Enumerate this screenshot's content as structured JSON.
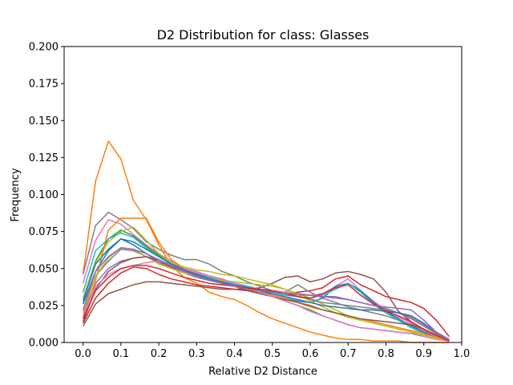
{
  "chart_data": {
    "type": "line",
    "title": "D2 Distribution for class: Glasses",
    "xlabel": "Relative D2 Distance",
    "ylabel": "Frequency",
    "xlim": [
      -0.05,
      1.0
    ],
    "ylim": [
      0.0,
      0.2
    ],
    "xticks": [
      0.0,
      0.1,
      0.2,
      0.3,
      0.4,
      0.5,
      0.6,
      0.7,
      0.8,
      0.9,
      1.0
    ],
    "xtick_labels": [
      "0.0",
      "0.1",
      "0.2",
      "0.3",
      "0.4",
      "0.5",
      "0.6",
      "0.7",
      "0.8",
      "0.9",
      "1.0"
    ],
    "yticks": [
      0.0,
      0.025,
      0.05,
      0.075,
      0.1,
      0.125,
      0.15,
      0.175,
      0.2
    ],
    "ytick_labels": [
      "0.000",
      "0.025",
      "0.050",
      "0.075",
      "0.100",
      "0.125",
      "0.150",
      "0.175",
      "0.200"
    ],
    "grid": false,
    "legend": "none",
    "x": [
      0.0,
      0.033,
      0.067,
      0.1,
      0.133,
      0.167,
      0.2,
      0.233,
      0.267,
      0.3,
      0.333,
      0.367,
      0.4,
      0.433,
      0.467,
      0.5,
      0.533,
      0.567,
      0.6,
      0.633,
      0.667,
      0.7,
      0.733,
      0.767,
      0.8,
      0.833,
      0.867,
      0.9,
      0.933,
      0.967
    ],
    "series": [
      {
        "color": "#ff7f0e",
        "values": [
          0.046,
          0.109,
          0.136,
          0.124,
          0.096,
          0.083,
          0.066,
          0.052,
          0.044,
          0.04,
          0.034,
          0.031,
          0.029,
          0.025,
          0.02,
          0.016,
          0.013,
          0.01,
          0.007,
          0.005,
          0.003,
          0.002,
          0.002,
          0.001,
          0.001,
          0.001,
          0.0,
          0.0,
          0.0,
          0.0
        ]
      },
      {
        "color": "#8c564b",
        "values": [
          0.011,
          0.026,
          0.033,
          0.036,
          0.039,
          0.041,
          0.041,
          0.04,
          0.039,
          0.038,
          0.037,
          0.036,
          0.036,
          0.036,
          0.037,
          0.04,
          0.044,
          0.045,
          0.041,
          0.043,
          0.047,
          0.048,
          0.046,
          0.043,
          0.034,
          0.021,
          0.014,
          0.008,
          0.004,
          0.001
        ]
      },
      {
        "color": "#d62728",
        "values": [
          0.013,
          0.03,
          0.04,
          0.047,
          0.051,
          0.05,
          0.046,
          0.043,
          0.041,
          0.039,
          0.038,
          0.037,
          0.036,
          0.035,
          0.034,
          0.034,
          0.033,
          0.034,
          0.035,
          0.037,
          0.043,
          0.045,
          0.039,
          0.035,
          0.031,
          0.029,
          0.027,
          0.023,
          0.015,
          0.004
        ]
      },
      {
        "color": "#7f7f7f",
        "values": [
          0.046,
          0.079,
          0.088,
          0.083,
          0.077,
          0.068,
          0.063,
          0.059,
          0.056,
          0.056,
          0.053,
          0.048,
          0.045,
          0.041,
          0.038,
          0.035,
          0.034,
          0.039,
          0.034,
          0.03,
          0.027,
          0.024,
          0.022,
          0.02,
          0.018,
          0.015,
          0.012,
          0.007,
          0.004,
          0.001
        ]
      },
      {
        "color": "#e377c2",
        "values": [
          0.04,
          0.069,
          0.083,
          0.08,
          0.073,
          0.066,
          0.06,
          0.055,
          0.05,
          0.048,
          0.045,
          0.043,
          0.04,
          0.038,
          0.036,
          0.035,
          0.034,
          0.033,
          0.032,
          0.033,
          0.038,
          0.043,
          0.035,
          0.028,
          0.022,
          0.017,
          0.013,
          0.008,
          0.004,
          0.001
        ]
      },
      {
        "color": "#2ca02c",
        "values": [
          0.03,
          0.055,
          0.07,
          0.076,
          0.072,
          0.065,
          0.059,
          0.054,
          0.05,
          0.047,
          0.044,
          0.041,
          0.038,
          0.036,
          0.033,
          0.031,
          0.028,
          0.025,
          0.022,
          0.018,
          0.015,
          0.012,
          0.01,
          0.009,
          0.008,
          0.007,
          0.006,
          0.005,
          0.003,
          0.001
        ]
      },
      {
        "color": "#bcbd22",
        "values": [
          0.03,
          0.054,
          0.068,
          0.075,
          0.078,
          0.069,
          0.06,
          0.054,
          0.051,
          0.049,
          0.048,
          0.046,
          0.045,
          0.043,
          0.041,
          0.039,
          0.036,
          0.033,
          0.03,
          0.026,
          0.022,
          0.018,
          0.016,
          0.014,
          0.012,
          0.01,
          0.008,
          0.006,
          0.004,
          0.001
        ]
      },
      {
        "color": "#1f77b4",
        "values": [
          0.026,
          0.048,
          0.062,
          0.07,
          0.066,
          0.06,
          0.055,
          0.051,
          0.048,
          0.046,
          0.044,
          0.042,
          0.04,
          0.038,
          0.035,
          0.032,
          0.03,
          0.028,
          0.027,
          0.03,
          0.038,
          0.04,
          0.035,
          0.027,
          0.021,
          0.016,
          0.011,
          0.007,
          0.004,
          0.001
        ]
      },
      {
        "color": "#9467bd",
        "values": [
          0.02,
          0.04,
          0.05,
          0.055,
          0.057,
          0.058,
          0.056,
          0.052,
          0.048,
          0.046,
          0.044,
          0.042,
          0.04,
          0.038,
          0.036,
          0.034,
          0.033,
          0.032,
          0.032,
          0.031,
          0.031,
          0.029,
          0.027,
          0.025,
          0.023,
          0.02,
          0.016,
          0.011,
          0.006,
          0.002
        ]
      },
      {
        "color": "#17becf",
        "values": [
          0.034,
          0.062,
          0.07,
          0.074,
          0.071,
          0.064,
          0.058,
          0.053,
          0.049,
          0.047,
          0.044,
          0.042,
          0.04,
          0.038,
          0.036,
          0.034,
          0.032,
          0.031,
          0.03,
          0.032,
          0.036,
          0.04,
          0.034,
          0.026,
          0.02,
          0.015,
          0.01,
          0.006,
          0.003,
          0.001
        ]
      },
      {
        "color": "#ff7f0e",
        "values": [
          0.016,
          0.042,
          0.076,
          0.084,
          0.084,
          0.084,
          0.068,
          0.056,
          0.05,
          0.046,
          0.043,
          0.04,
          0.038,
          0.036,
          0.034,
          0.032,
          0.03,
          0.027,
          0.024,
          0.022,
          0.02,
          0.018,
          0.016,
          0.014,
          0.012,
          0.01,
          0.008,
          0.006,
          0.004,
          0.001
        ]
      },
      {
        "color": "#7f7f7f",
        "values": [
          0.022,
          0.045,
          0.055,
          0.063,
          0.062,
          0.058,
          0.054,
          0.05,
          0.047,
          0.044,
          0.042,
          0.04,
          0.038,
          0.037,
          0.036,
          0.035,
          0.033,
          0.031,
          0.029,
          0.027,
          0.026,
          0.025,
          0.024,
          0.023,
          0.022,
          0.02,
          0.017,
          0.012,
          0.006,
          0.002
        ]
      },
      {
        "color": "#bcbd22",
        "values": [
          0.02,
          0.045,
          0.057,
          0.064,
          0.063,
          0.058,
          0.053,
          0.05,
          0.047,
          0.045,
          0.043,
          0.042,
          0.041,
          0.04,
          0.039,
          0.038,
          0.036,
          0.032,
          0.028,
          0.024,
          0.02,
          0.017,
          0.015,
          0.013,
          0.011,
          0.009,
          0.007,
          0.005,
          0.003,
          0.001
        ]
      },
      {
        "color": "#8c564b",
        "values": [
          0.014,
          0.036,
          0.048,
          0.054,
          0.057,
          0.058,
          0.055,
          0.051,
          0.048,
          0.045,
          0.042,
          0.04,
          0.038,
          0.035,
          0.033,
          0.031,
          0.029,
          0.027,
          0.025,
          0.022,
          0.02,
          0.018,
          0.016,
          0.015,
          0.014,
          0.013,
          0.012,
          0.009,
          0.005,
          0.001
        ]
      },
      {
        "color": "#e377c2",
        "values": [
          0.018,
          0.038,
          0.046,
          0.05,
          0.052,
          0.054,
          0.055,
          0.053,
          0.05,
          0.047,
          0.045,
          0.043,
          0.04,
          0.037,
          0.034,
          0.031,
          0.028,
          0.025,
          0.021,
          0.018,
          0.015,
          0.012,
          0.01,
          0.009,
          0.008,
          0.007,
          0.006,
          0.004,
          0.002,
          0.001
        ]
      },
      {
        "color": "#1f77b4",
        "values": [
          0.028,
          0.053,
          0.063,
          0.07,
          0.068,
          0.063,
          0.058,
          0.053,
          0.049,
          0.046,
          0.043,
          0.041,
          0.039,
          0.037,
          0.035,
          0.033,
          0.031,
          0.029,
          0.027,
          0.025,
          0.024,
          0.023,
          0.022,
          0.022,
          0.021,
          0.02,
          0.018,
          0.013,
          0.007,
          0.002
        ]
      },
      {
        "color": "#d62728",
        "values": [
          0.016,
          0.035,
          0.044,
          0.05,
          0.052,
          0.052,
          0.05,
          0.047,
          0.044,
          0.042,
          0.04,
          0.039,
          0.038,
          0.037,
          0.036,
          0.035,
          0.033,
          0.031,
          0.03,
          0.033,
          0.037,
          0.039,
          0.032,
          0.026,
          0.021,
          0.018,
          0.014,
          0.009,
          0.005,
          0.001
        ]
      },
      {
        "color": "#9467bd",
        "values": [
          0.022,
          0.048,
          0.058,
          0.064,
          0.063,
          0.06,
          0.056,
          0.052,
          0.048,
          0.045,
          0.042,
          0.04,
          0.038,
          0.036,
          0.035,
          0.034,
          0.033,
          0.033,
          0.032,
          0.031,
          0.03,
          0.029,
          0.027,
          0.025,
          0.024,
          0.023,
          0.022,
          0.015,
          0.007,
          0.002
        ]
      }
    ]
  }
}
